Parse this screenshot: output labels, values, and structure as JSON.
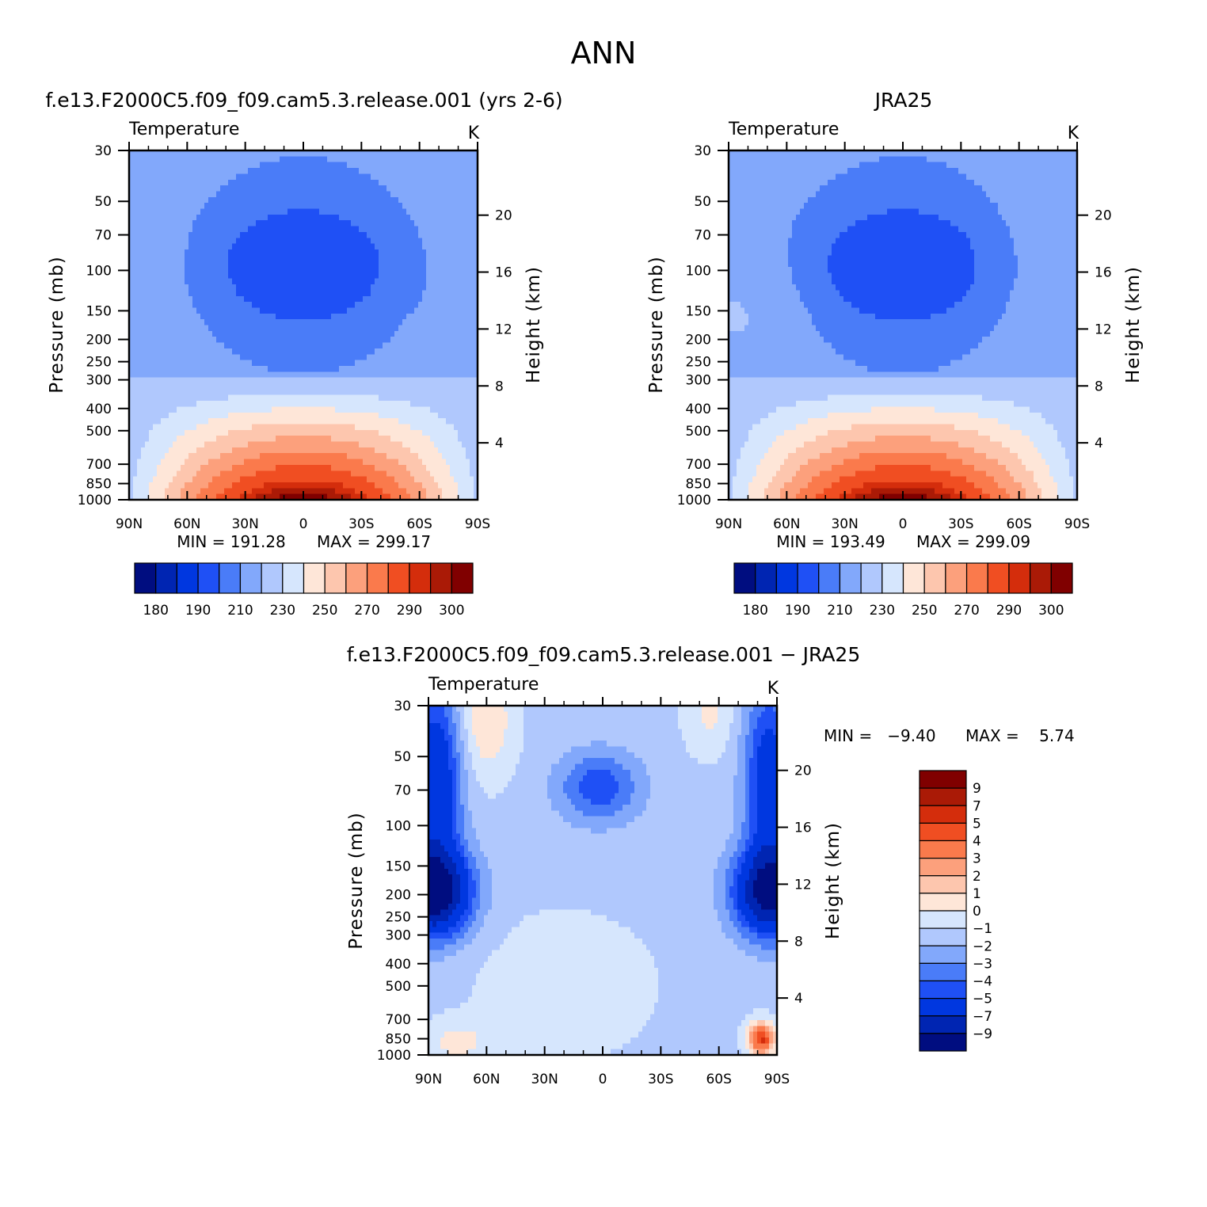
{
  "figure": {
    "title": "ANN"
  },
  "chart_data": [
    {
      "type": "heatmap",
      "title": "f.e13.F2000C5.f09_f09.cam5.3.release.001 (yrs 2-6)",
      "left_label": "Temperature",
      "right_label": "K",
      "xlabel": "",
      "ylabel": "Pressure (mb)",
      "y2label": "Height (km)",
      "x_ticks": [
        "90N",
        "60N",
        "30N",
        "0",
        "30S",
        "60S",
        "90S"
      ],
      "x_range": [
        90,
        -90
      ],
      "y_ticks": [
        30,
        50,
        70,
        100,
        150,
        200,
        250,
        300,
        400,
        500,
        700,
        850,
        1000
      ],
      "y_range": [
        1000,
        30
      ],
      "y2_ticks": [
        4,
        8,
        12,
        16,
        20
      ],
      "min_label": "MIN = 191.28",
      "max_label": "MAX = 299.17",
      "colorbar_labels": [
        "180",
        "190",
        "210",
        "230",
        "250",
        "270",
        "290",
        "300"
      ],
      "contour_levels": [
        180,
        185,
        190,
        200,
        210,
        220,
        230,
        240,
        250,
        260,
        270,
        280,
        290,
        295,
        300
      ],
      "field": "model"
    },
    {
      "type": "heatmap",
      "title": "JRA25",
      "left_label": "Temperature",
      "right_label": "K",
      "xlabel": "",
      "ylabel": "Pressure (mb)",
      "y2label": "Height (km)",
      "x_ticks": [
        "90N",
        "60N",
        "30N",
        "0",
        "30S",
        "60S",
        "90S"
      ],
      "x_range": [
        90,
        -90
      ],
      "y_ticks": [
        30,
        50,
        70,
        100,
        150,
        200,
        250,
        300,
        400,
        500,
        700,
        850,
        1000
      ],
      "y_range": [
        1000,
        30
      ],
      "y2_ticks": [
        4,
        8,
        12,
        16,
        20
      ],
      "min_label": "MIN = 193.49",
      "max_label": "MAX = 299.09",
      "colorbar_labels": [
        "180",
        "190",
        "210",
        "230",
        "250",
        "270",
        "290",
        "300"
      ],
      "contour_levels": [
        180,
        185,
        190,
        200,
        210,
        220,
        230,
        240,
        250,
        260,
        270,
        280,
        290,
        295,
        300
      ],
      "field": "obs"
    },
    {
      "type": "heatmap",
      "title": "f.e13.F2000C5.f09_f09.cam5.3.release.001 − JRA25",
      "left_label": "Temperature",
      "right_label": "K",
      "xlabel": "",
      "ylabel": "Pressure (mb)",
      "y2label": "Height (km)",
      "x_ticks": [
        "90N",
        "60N",
        "30N",
        "0",
        "30S",
        "60S",
        "90S"
      ],
      "x_range": [
        90,
        -90
      ],
      "y_ticks": [
        30,
        50,
        70,
        100,
        150,
        200,
        250,
        300,
        400,
        500,
        700,
        850,
        1000
      ],
      "y_range": [
        1000,
        30
      ],
      "y2_ticks": [
        4,
        8,
        12,
        16,
        20
      ],
      "min_label": "MIN =   −9.40",
      "max_label": "MAX =    5.74",
      "colorbar_labels": [
        "9",
        "7",
        "5",
        "4",
        "3",
        "2",
        "1",
        "0",
        "−1",
        "−2",
        "−3",
        "−4",
        "−5",
        "−7",
        "−9"
      ],
      "contour_levels": [
        -9,
        -7,
        -5,
        -4,
        -3,
        -2,
        -1,
        0,
        1,
        2,
        3,
        4,
        5,
        7,
        9
      ],
      "field": "diff"
    }
  ],
  "colors": {
    "colormap_16": [
      "#000d80",
      "#0025b2",
      "#0037e0",
      "#1f50f5",
      "#4a7cf8",
      "#82a8fb",
      "#b0c8fd",
      "#d6e6fd",
      "#fee6d8",
      "#fdc6ae",
      "#fca07c",
      "#fa7a4c",
      "#f04e22",
      "#d42d0c",
      "#aa1a06",
      "#800000"
    ]
  }
}
